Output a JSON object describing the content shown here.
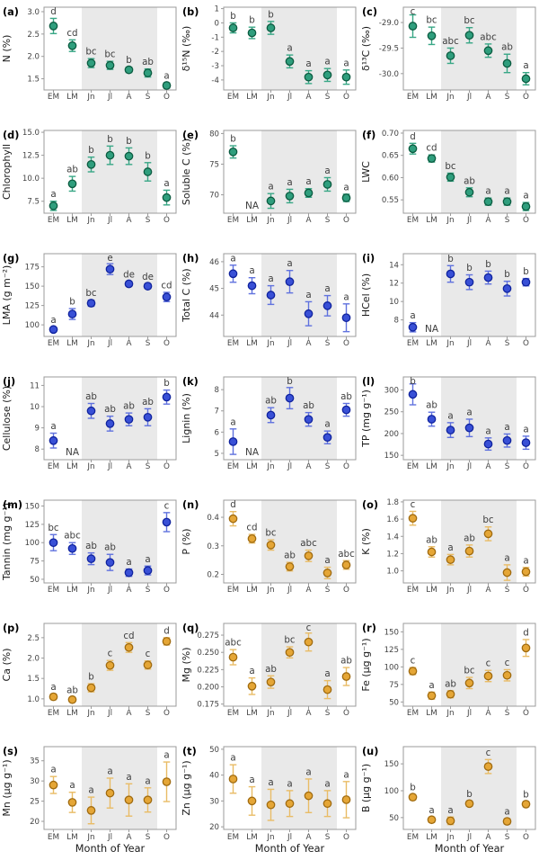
{
  "figure": {
    "x_axis_label": "Month of Year",
    "colors": {
      "green": {
        "fill": "#2f9e7d",
        "stroke": "#0c5c41",
        "bar": "#39a786"
      },
      "blue": {
        "fill": "#3950d6",
        "stroke": "#10239e",
        "bar": "#6072de"
      },
      "orange": {
        "fill": "#e5a636",
        "stroke": "#a06b10",
        "bar": "#e9bc66"
      },
      "band": "#e9e9e9",
      "border": "#9b9b9b",
      "tick_text": "#444444",
      "letter_text": "#3d3d3d",
      "label_text": "#1a1a1a"
    }
  },
  "chart_data": {
    "type": "multi-panel-scatter-errorbar",
    "categories": [
      "EM",
      "LM",
      "Jn",
      "Jl",
      "A",
      "S",
      "O"
    ],
    "x_axis_label": "Month of Year",
    "shaded_band_categories": [
      "Jn",
      "Jl",
      "A",
      "S"
    ],
    "panels": [
      {
        "id": "a",
        "label": "(a)",
        "ylabel": "N (%)",
        "color": "green",
        "ylim": [
          1.25,
          3.1
        ],
        "yticks": [
          "1.5",
          "2.0",
          "2.5",
          "3.0"
        ],
        "values": [
          2.68,
          2.24,
          1.85,
          1.8,
          1.7,
          1.63,
          1.35
        ],
        "errors": [
          0.17,
          0.13,
          0.1,
          0.09,
          0.06,
          0.09,
          0.06
        ],
        "letters": [
          "d",
          "cd",
          "bc",
          "bc",
          "b",
          "ab",
          "a"
        ]
      },
      {
        "id": "b",
        "label": "(b)",
        "ylabel": "δ¹⁵N (‰)",
        "color": "green",
        "ylim": [
          -4.7,
          1.1
        ],
        "yticks": [
          "1",
          "0",
          "-1",
          "-2",
          "-3",
          "-4"
        ],
        "values": [
          -0.35,
          -0.7,
          -0.35,
          -2.7,
          -3.8,
          -3.65,
          -3.8
        ],
        "errors": [
          0.35,
          0.4,
          0.45,
          0.45,
          0.45,
          0.45,
          0.5
        ],
        "letters": [
          "b",
          "b",
          "b",
          "a",
          "a",
          "a",
          "a"
        ]
      },
      {
        "id": "c",
        "label": "(c)",
        "ylabel": "δ¹³C (‰)",
        "color": "green",
        "ylim": [
          -30.32,
          -28.7
        ],
        "yticks": [
          "-29.0",
          "-29.5",
          "-30.0"
        ],
        "values": [
          -29.07,
          -29.26,
          -29.65,
          -29.25,
          -29.55,
          -29.8,
          -30.1
        ],
        "errors": [
          0.22,
          0.17,
          0.15,
          0.15,
          0.13,
          0.18,
          0.12
        ],
        "letters": [
          "c",
          "bc",
          "abc",
          "bc",
          "abc",
          "ab",
          "a"
        ]
      },
      {
        "id": "d",
        "label": "(d)",
        "ylabel": "Chlorophyll",
        "color": "green",
        "ylim": [
          6.2,
          15.2
        ],
        "yticks": [
          "7.5",
          "10.0",
          "12.5",
          "15.0"
        ],
        "values": [
          7.0,
          9.4,
          11.5,
          12.5,
          12.4,
          10.7,
          7.9
        ],
        "errors": [
          0.5,
          0.8,
          0.8,
          1.0,
          0.9,
          1.0,
          0.8
        ],
        "letters": [
          "a",
          "ab",
          "b",
          "b",
          "b",
          "b",
          "a"
        ]
      },
      {
        "id": "e",
        "label": "(e)",
        "ylabel": "Soluble C (%)",
        "color": "green",
        "ylim": [
          67,
          80.5
        ],
        "yticks": [
          "70",
          "75",
          "80"
        ],
        "values": [
          77.0,
          null,
          69.0,
          69.8,
          70.3,
          71.7,
          69.5
        ],
        "errors": [
          1.0,
          null,
          1.2,
          1.1,
          0.7,
          1.1,
          0.6
        ],
        "letters": [
          "b",
          "NA",
          "a",
          "a",
          "a",
          "a",
          "a"
        ]
      },
      {
        "id": "f",
        "label": "(f)",
        "ylabel": "LWC",
        "color": "green",
        "ylim": [
          0.52,
          0.706
        ],
        "yticks": [
          "0.55",
          "0.60",
          "0.65",
          "0.70"
        ],
        "values": [
          0.665,
          0.643,
          0.601,
          0.567,
          0.546,
          0.546,
          0.535
        ],
        "errors": [
          0.012,
          0.008,
          0.009,
          0.01,
          0.008,
          0.008,
          0.009
        ],
        "letters": [
          "d",
          "cd",
          "bc",
          "ab",
          "a",
          "a",
          "a"
        ]
      },
      {
        "id": "g",
        "label": "(g)",
        "ylabel": "LMA (g m⁻²)",
        "color": "blue",
        "ylim": [
          85,
          192
        ],
        "yticks": [
          "100",
          "125",
          "150",
          "175"
        ],
        "values": [
          94,
          114,
          128,
          172,
          153,
          150,
          136
        ],
        "errors": [
          3,
          7,
          4,
          7,
          3,
          3,
          6
        ],
        "letters": [
          "a",
          "b",
          "bc",
          "e",
          "de",
          "de",
          "cd"
        ]
      },
      {
        "id": "h",
        "label": "(h)",
        "ylabel": "Total C (%)",
        "color": "blue",
        "ylim": [
          43.2,
          46.3
        ],
        "yticks": [
          "44",
          "45",
          "46"
        ],
        "values": [
          45.55,
          45.1,
          44.75,
          45.25,
          44.05,
          44.35,
          43.9
        ],
        "errors": [
          0.32,
          0.3,
          0.35,
          0.42,
          0.45,
          0.38,
          0.52
        ],
        "letters": [
          "a",
          "a",
          "a",
          "a",
          "a",
          "a",
          "a"
        ]
      },
      {
        "id": "i",
        "label": "(i)",
        "ylabel": "HCel (%)",
        "color": "blue",
        "ylim": [
          6.2,
          15.2
        ],
        "yticks": [
          "8",
          "10",
          "12",
          "14"
        ],
        "values": [
          7.2,
          null,
          13.0,
          12.1,
          12.6,
          11.4,
          12.1
        ],
        "errors": [
          0.5,
          null,
          0.9,
          0.8,
          0.7,
          0.8,
          0.4
        ],
        "letters": [
          "a",
          "NA",
          "b",
          "b",
          "b",
          "b",
          "b"
        ]
      },
      {
        "id": "j",
        "label": "(j)",
        "ylabel": "Cellulose (%)",
        "color": "blue",
        "ylim": [
          7.5,
          11.4
        ],
        "yticks": [
          "8",
          "9",
          "10",
          "11"
        ],
        "values": [
          8.4,
          null,
          9.8,
          9.2,
          9.4,
          9.5,
          10.45
        ],
        "errors": [
          0.35,
          null,
          0.35,
          0.35,
          0.3,
          0.4,
          0.33
        ],
        "letters": [
          "a",
          "NA",
          "ab",
          "ab",
          "ab",
          "ab",
          "b"
        ]
      },
      {
        "id": "k",
        "label": "(k)",
        "ylabel": "Lignin (%)",
        "color": "blue",
        "ylim": [
          4.7,
          8.6
        ],
        "yticks": [
          "5",
          "6",
          "7",
          "8"
        ],
        "values": [
          5.55,
          null,
          6.8,
          7.6,
          6.6,
          5.75,
          7.05
        ],
        "errors": [
          0.6,
          null,
          0.35,
          0.5,
          0.32,
          0.3,
          0.3
        ],
        "letters": [
          "a",
          "NA",
          "ab",
          "b",
          "ab",
          "a",
          "ab"
        ]
      },
      {
        "id": "l",
        "label": "(l)",
        "ylabel": "TP (mg g⁻¹)",
        "color": "blue",
        "ylim": [
          140,
          330
        ],
        "yticks": [
          "150",
          "200",
          "250",
          "300"
        ],
        "values": [
          290,
          233,
          208,
          213,
          176,
          184,
          179
        ],
        "errors": [
          24,
          16,
          17,
          20,
          14,
          15,
          15
        ],
        "letters": [
          "b",
          "ab",
          "a",
          "a",
          "a",
          "a",
          "a"
        ]
      },
      {
        "id": "m",
        "label": "(m)",
        "ylabel": "Tannin (mg g⁻¹)",
        "color": "blue",
        "ylim": [
          45,
          158
        ],
        "yticks": [
          "50",
          "75",
          "100",
          "125",
          "150"
        ],
        "values": [
          100,
          92,
          78,
          73,
          59,
          62,
          128
        ],
        "errors": [
          11,
          8,
          8,
          11,
          5,
          6,
          13
        ],
        "letters": [
          "bc",
          "abc",
          "ab",
          "ab",
          "a",
          "a",
          "c"
        ]
      },
      {
        "id": "n",
        "label": "(n)",
        "ylabel": "P (%)",
        "color": "orange",
        "ylim": [
          0.17,
          0.46
        ],
        "yticks": [
          "0.2",
          "0.3",
          "0.4"
        ],
        "values": [
          0.395,
          0.325,
          0.303,
          0.227,
          0.265,
          0.205,
          0.233
        ],
        "errors": [
          0.025,
          0.015,
          0.018,
          0.015,
          0.02,
          0.02,
          0.015
        ],
        "letters": [
          "d",
          "cd",
          "bc",
          "ab",
          "abc",
          "a",
          "abc"
        ]
      },
      {
        "id": "o",
        "label": "(o)",
        "ylabel": "K (%)",
        "color": "orange",
        "ylim": [
          0.86,
          1.82
        ],
        "yticks": [
          "1.0",
          "1.2",
          "1.4",
          "1.6",
          "1.8"
        ],
        "values": [
          1.61,
          1.22,
          1.13,
          1.23,
          1.43,
          0.98,
          0.99
        ],
        "errors": [
          0.08,
          0.06,
          0.06,
          0.07,
          0.08,
          0.09,
          0.05
        ],
        "letters": [
          "c",
          "ab",
          "a",
          "ab",
          "bc",
          "a",
          "a"
        ]
      },
      {
        "id": "p",
        "label": "(p)",
        "ylabel": "Ca (%)",
        "color": "orange",
        "ylim": [
          0.82,
          2.85
        ],
        "yticks": [
          "1.0",
          "1.5",
          "2.0",
          "2.5"
        ],
        "values": [
          1.05,
          0.98,
          1.27,
          1.82,
          2.26,
          1.83,
          2.41
        ],
        "errors": [
          0.07,
          0.06,
          0.1,
          0.12,
          0.12,
          0.1,
          0.09
        ],
        "letters": [
          "a",
          "ab",
          "b",
          "c",
          "cd",
          "c",
          "d"
        ]
      },
      {
        "id": "q",
        "label": "(q)",
        "ylabel": "Mg (%)",
        "color": "orange",
        "ylim": [
          0.172,
          0.292
        ],
        "yticks": [
          "0.175",
          "0.200",
          "0.225",
          "0.250",
          "0.275"
        ],
        "values": [
          0.243,
          0.201,
          0.207,
          0.25,
          0.265,
          0.196,
          0.215
        ],
        "errors": [
          0.011,
          0.012,
          0.009,
          0.008,
          0.013,
          0.013,
          0.013
        ],
        "letters": [
          "abc",
          "a",
          "ab",
          "bc",
          "c",
          "a",
          "ab"
        ]
      },
      {
        "id": "r",
        "label": "(r)",
        "ylabel": "Fe (µg g⁻¹)",
        "color": "orange",
        "ylim": [
          44,
          162
        ],
        "yticks": [
          "50",
          "75",
          "100",
          "125",
          "150"
        ],
        "values": [
          94,
          59,
          61,
          77,
          87,
          88,
          127
        ],
        "errors": [
          5,
          5,
          5,
          8,
          8,
          8,
          12
        ],
        "letters": [
          "c",
          "a",
          "ab",
          "bc",
          "c",
          "c",
          "d"
        ]
      },
      {
        "id": "s",
        "label": "(s)",
        "ylabel": "Mn (µg g⁻¹)",
        "color": "orange",
        "ylim": [
          18,
          38.5
        ],
        "yticks": [
          "20",
          "25",
          "30",
          "35"
        ],
        "values": [
          29.0,
          24.7,
          22.7,
          27.0,
          25.3,
          25.3,
          29.8
        ],
        "errors": [
          2.1,
          2.5,
          3.3,
          3.7,
          4.0,
          3.0,
          4.9
        ],
        "letters": [
          "a",
          "a",
          "a",
          "a",
          "a",
          "a",
          "a"
        ]
      },
      {
        "id": "t",
        "label": "(t)",
        "ylabel": "Zn (µg g⁻¹)",
        "color": "orange",
        "ylim": [
          19,
          51
        ],
        "yticks": [
          "20",
          "30",
          "40",
          "50"
        ],
        "values": [
          38.5,
          30.0,
          28.5,
          29.0,
          32.0,
          29.0,
          30.5
        ],
        "errors": [
          5.5,
          5.5,
          6.0,
          5.0,
          6.5,
          5.0,
          7.0
        ],
        "letters": [
          "a",
          "a",
          "a",
          "a",
          "a",
          "a",
          "a"
        ]
      },
      {
        "id": "u",
        "label": "(u)",
        "ylabel": "B (µg g⁻¹)",
        "color": "orange",
        "ylim": [
          28,
          182
        ],
        "yticks": [
          "50",
          "100",
          "150"
        ],
        "values": [
          88,
          46,
          44,
          76,
          145,
          43,
          75
        ],
        "errors": [
          5,
          5,
          7,
          5,
          13,
          5,
          5
        ],
        "letters": [
          "b",
          "a",
          "a",
          "b",
          "c",
          "a",
          "b"
        ]
      }
    ]
  }
}
